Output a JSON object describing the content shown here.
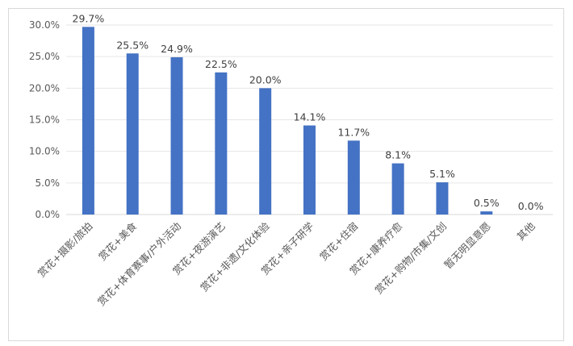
{
  "chart_data": {
    "type": "bar",
    "title": "",
    "xlabel": "",
    "ylabel": "",
    "categories": [
      "赏花+摄影/旅拍",
      "赏花+美食",
      "赏花+体育赛事/户外活动",
      "赏花+夜游演艺",
      "赏花+非遗/文化体验",
      "赏花+亲子研学",
      "赏花+住宿",
      "赏花+康养疗愈",
      "赏花+购物/市集/文创",
      "暂无明显意愿",
      "其他"
    ],
    "values": [
      29.7,
      25.5,
      24.9,
      22.5,
      20.0,
      14.1,
      11.7,
      8.1,
      5.1,
      0.5,
      0.0
    ],
    "data_labels": [
      "29.7%",
      "25.5%",
      "24.9%",
      "22.5%",
      "20.0%",
      "14.1%",
      "11.7%",
      "8.1%",
      "5.1%",
      "0.5%",
      "0.0%"
    ],
    "ylim": [
      0,
      30
    ],
    "yticks": [
      0,
      5,
      10,
      15,
      20,
      25,
      30
    ],
    "ytick_labels": [
      "0.0%",
      "5.0%",
      "10.0%",
      "15.0%",
      "20.0%",
      "25.0%",
      "30.0%"
    ],
    "grid": true,
    "legend": "none",
    "bar_color": "#4472c4"
  }
}
